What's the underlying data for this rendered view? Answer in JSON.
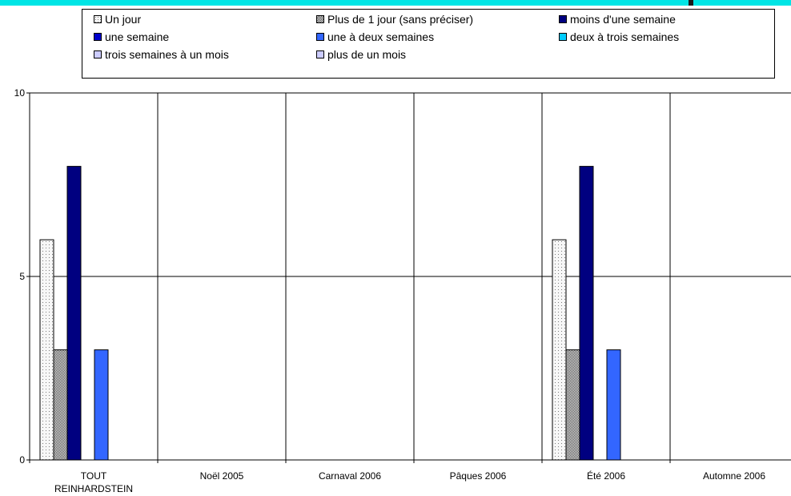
{
  "chart_data": {
    "type": "bar",
    "categories": [
      [
        "TOUT",
        "REINHARDSTEIN"
      ],
      [
        "Noël 2005"
      ],
      [
        "Carnaval 2006"
      ],
      [
        "Pâques 2006"
      ],
      [
        "Été 2006"
      ],
      [
        "Automne 2006"
      ]
    ],
    "ylim": [
      0,
      10
    ],
    "yticks": [
      0,
      5,
      10
    ],
    "grid": true,
    "legend_position": "top",
    "series": [
      {
        "name": "Un jour",
        "color": "#f2f2f2",
        "pattern": "dots",
        "values": [
          6,
          0,
          0,
          0,
          6,
          0
        ]
      },
      {
        "name": "Plus de 1 jour (sans préciser)",
        "color": "#808080",
        "pattern": "checker",
        "values": [
          3,
          0,
          0,
          0,
          3,
          0
        ]
      },
      {
        "name": "moins d'une semaine",
        "color": "#000080",
        "pattern": "solid",
        "values": [
          8,
          0,
          0,
          0,
          8,
          0
        ]
      },
      {
        "name": "une semaine",
        "color": "#0000cc",
        "pattern": "solid",
        "values": [
          0,
          0,
          0,
          0,
          0,
          0
        ]
      },
      {
        "name": "une à deux semaines",
        "color": "#3366ff",
        "pattern": "solid",
        "values": [
          3,
          0,
          0,
          0,
          3,
          0
        ]
      },
      {
        "name": "deux à trois semaines",
        "color": "#00ccff",
        "pattern": "solid",
        "values": [
          0,
          0,
          0,
          0,
          0,
          0
        ]
      },
      {
        "name": "trois semaines à un mois",
        "color": "#ccccff",
        "pattern": "solid",
        "values": [
          0,
          0,
          0,
          0,
          0,
          0
        ]
      },
      {
        "name": "plus de un mois",
        "color": "#ccccff",
        "pattern": "solid",
        "values": [
          0,
          0,
          0,
          0,
          0,
          0
        ]
      }
    ]
  }
}
